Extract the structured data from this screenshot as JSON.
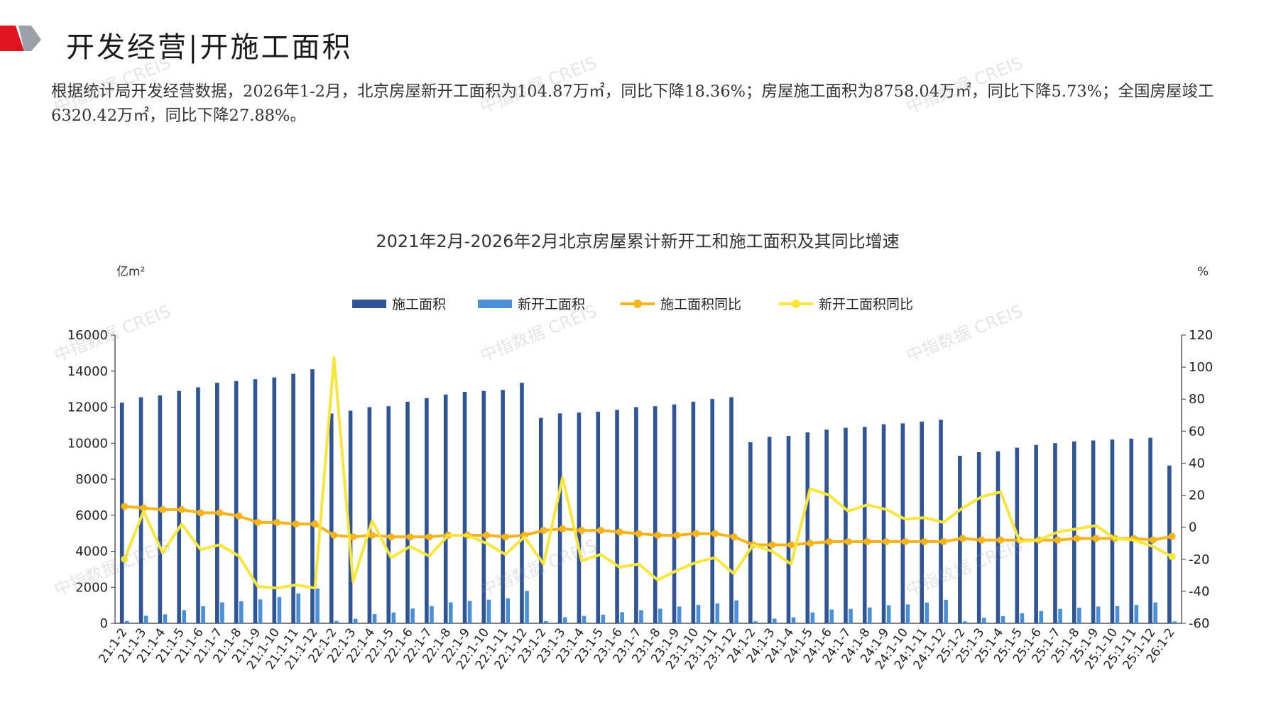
{
  "header": {
    "title": "开发经营|开施工面积",
    "colors": {
      "accent_red": "#e0141e",
      "accent_gray": "#9aa0a6"
    }
  },
  "description": {
    "text": "根据统计局开发经营数据，2026年1-2月，北京房屋新开工面积为104.87万㎡，同比下降18.36%；房屋施工面积为8758.04万㎡，同比下降5.73%；全国房屋竣工6320.42万㎡，同比下降27.88%。"
  },
  "watermark": "中指数据 CREIS",
  "chart_data": {
    "type": "bar",
    "title": "2021年2月-2026年2月北京房屋累计新开工和施工面积及其同比增速",
    "ylabel_left": "亿m²",
    "ylabel_right": "%",
    "ylim_left": [
      0,
      16000
    ],
    "yticks_left": [
      0,
      2000,
      4000,
      6000,
      8000,
      10000,
      12000,
      14000,
      16000
    ],
    "ylim_right": [
      -60,
      120
    ],
    "yticks_right": [
      -60,
      -40,
      -20,
      0,
      20,
      40,
      60,
      80,
      100,
      120
    ],
    "legend_position": "top-center",
    "categories": [
      "21:1-2",
      "21:1-3",
      "21:1-4",
      "21:1-5",
      "21:1-6",
      "21:1-7",
      "21:1-8",
      "21:1-9",
      "21:1-10",
      "21:1-11",
      "21:1-12",
      "22:1-2",
      "22:1-3",
      "22:1-4",
      "22:1-5",
      "22:1-6",
      "22:1-7",
      "22:1-8",
      "22:1-9",
      "22:1-10",
      "22:1-11",
      "22:1-12",
      "23:1-2",
      "23:1-3",
      "23:1-4",
      "23:1-5",
      "23:1-6",
      "23:1-7",
      "23:1-8",
      "23:1-9",
      "23:1-10",
      "23:1-11",
      "23:1-12",
      "24:1-2",
      "24:1-3",
      "24:1-4",
      "24:1-5",
      "24:1-6",
      "24:1-7",
      "24:1-8",
      "24:1-9",
      "24:1-10",
      "24:1-11",
      "24:1-12",
      "25:1-2",
      "25:1-3",
      "25:1-4",
      "25:1-5",
      "25:1-6",
      "25:1-7",
      "25:1-8",
      "25:1-9",
      "25:1-10",
      "25:1-11",
      "25:1-12",
      "26:1-2"
    ],
    "series": [
      {
        "name": "施工面积",
        "kind": "bar",
        "axis": "left",
        "color": "#2f5597",
        "values": [
          12250,
          12550,
          12650,
          12900,
          13100,
          13350,
          13450,
          13550,
          13650,
          13850,
          14100,
          11650,
          11800,
          12000,
          12050,
          12300,
          12500,
          12700,
          12850,
          12900,
          12950,
          13350,
          11400,
          11650,
          11700,
          11750,
          11850,
          12000,
          12050,
          12150,
          12300,
          12450,
          12550,
          10050,
          10350,
          10400,
          10600,
          10750,
          10850,
          10900,
          11050,
          11100,
          11200,
          11300,
          9300,
          9500,
          9550,
          9750,
          9900,
          10000,
          10100,
          10150,
          10200,
          10250,
          10300,
          8758
        ]
      },
      {
        "name": "新开工面积",
        "kind": "bar",
        "axis": "left",
        "color": "#4a90d9",
        "values": [
          130,
          420,
          500,
          730,
          950,
          1160,
          1220,
          1330,
          1460,
          1650,
          1930,
          130,
          250,
          510,
          600,
          820,
          960,
          1160,
          1240,
          1310,
          1390,
          1800,
          120,
          330,
          410,
          480,
          620,
          730,
          810,
          930,
          1020,
          1100,
          1270,
          110,
          260,
          330,
          600,
          760,
          800,
          880,
          1000,
          1050,
          1150,
          1300,
          110,
          300,
          400,
          560,
          680,
          800,
          870,
          930,
          960,
          1020,
          1160,
          105
        ]
      },
      {
        "name": "施工面积同比",
        "kind": "line",
        "axis": "right",
        "color": "#f5b41e",
        "values": [
          13,
          12,
          11,
          11,
          9,
          9,
          7,
          3,
          3,
          2,
          2,
          -5,
          -6,
          -5,
          -6,
          -6,
          -6,
          -5,
          -5,
          -5,
          -6,
          -5,
          -2,
          -1,
          -2,
          -2,
          -3,
          -4,
          -5,
          -5,
          -4,
          -4,
          -6,
          -11,
          -11,
          -11,
          -10,
          -9,
          -9,
          -9,
          -9,
          -9,
          -9,
          -9,
          -7,
          -8,
          -8,
          -8,
          -8,
          -8,
          -7,
          -7,
          -7,
          -7,
          -8,
          -5.73
        ]
      },
      {
        "name": "新开工面积同比",
        "kind": "line",
        "axis": "right",
        "color": "#f8e63c",
        "values": [
          -20,
          10,
          -16,
          2,
          -14,
          -11,
          -18,
          -37,
          -38,
          -36,
          -38,
          106,
          -34,
          4,
          -19,
          -12,
          -18,
          -5,
          -5,
          -10,
          -17,
          -6,
          -23,
          31,
          -21,
          -17,
          -25,
          -23,
          -33,
          -27,
          -22,
          -19,
          -29,
          -11,
          -15,
          -23,
          24,
          20,
          10,
          14,
          11,
          5,
          6,
          3,
          12,
          19,
          22,
          -9,
          -8,
          -3,
          -1,
          1,
          -7,
          -8,
          -12,
          -18.36
        ]
      }
    ]
  }
}
